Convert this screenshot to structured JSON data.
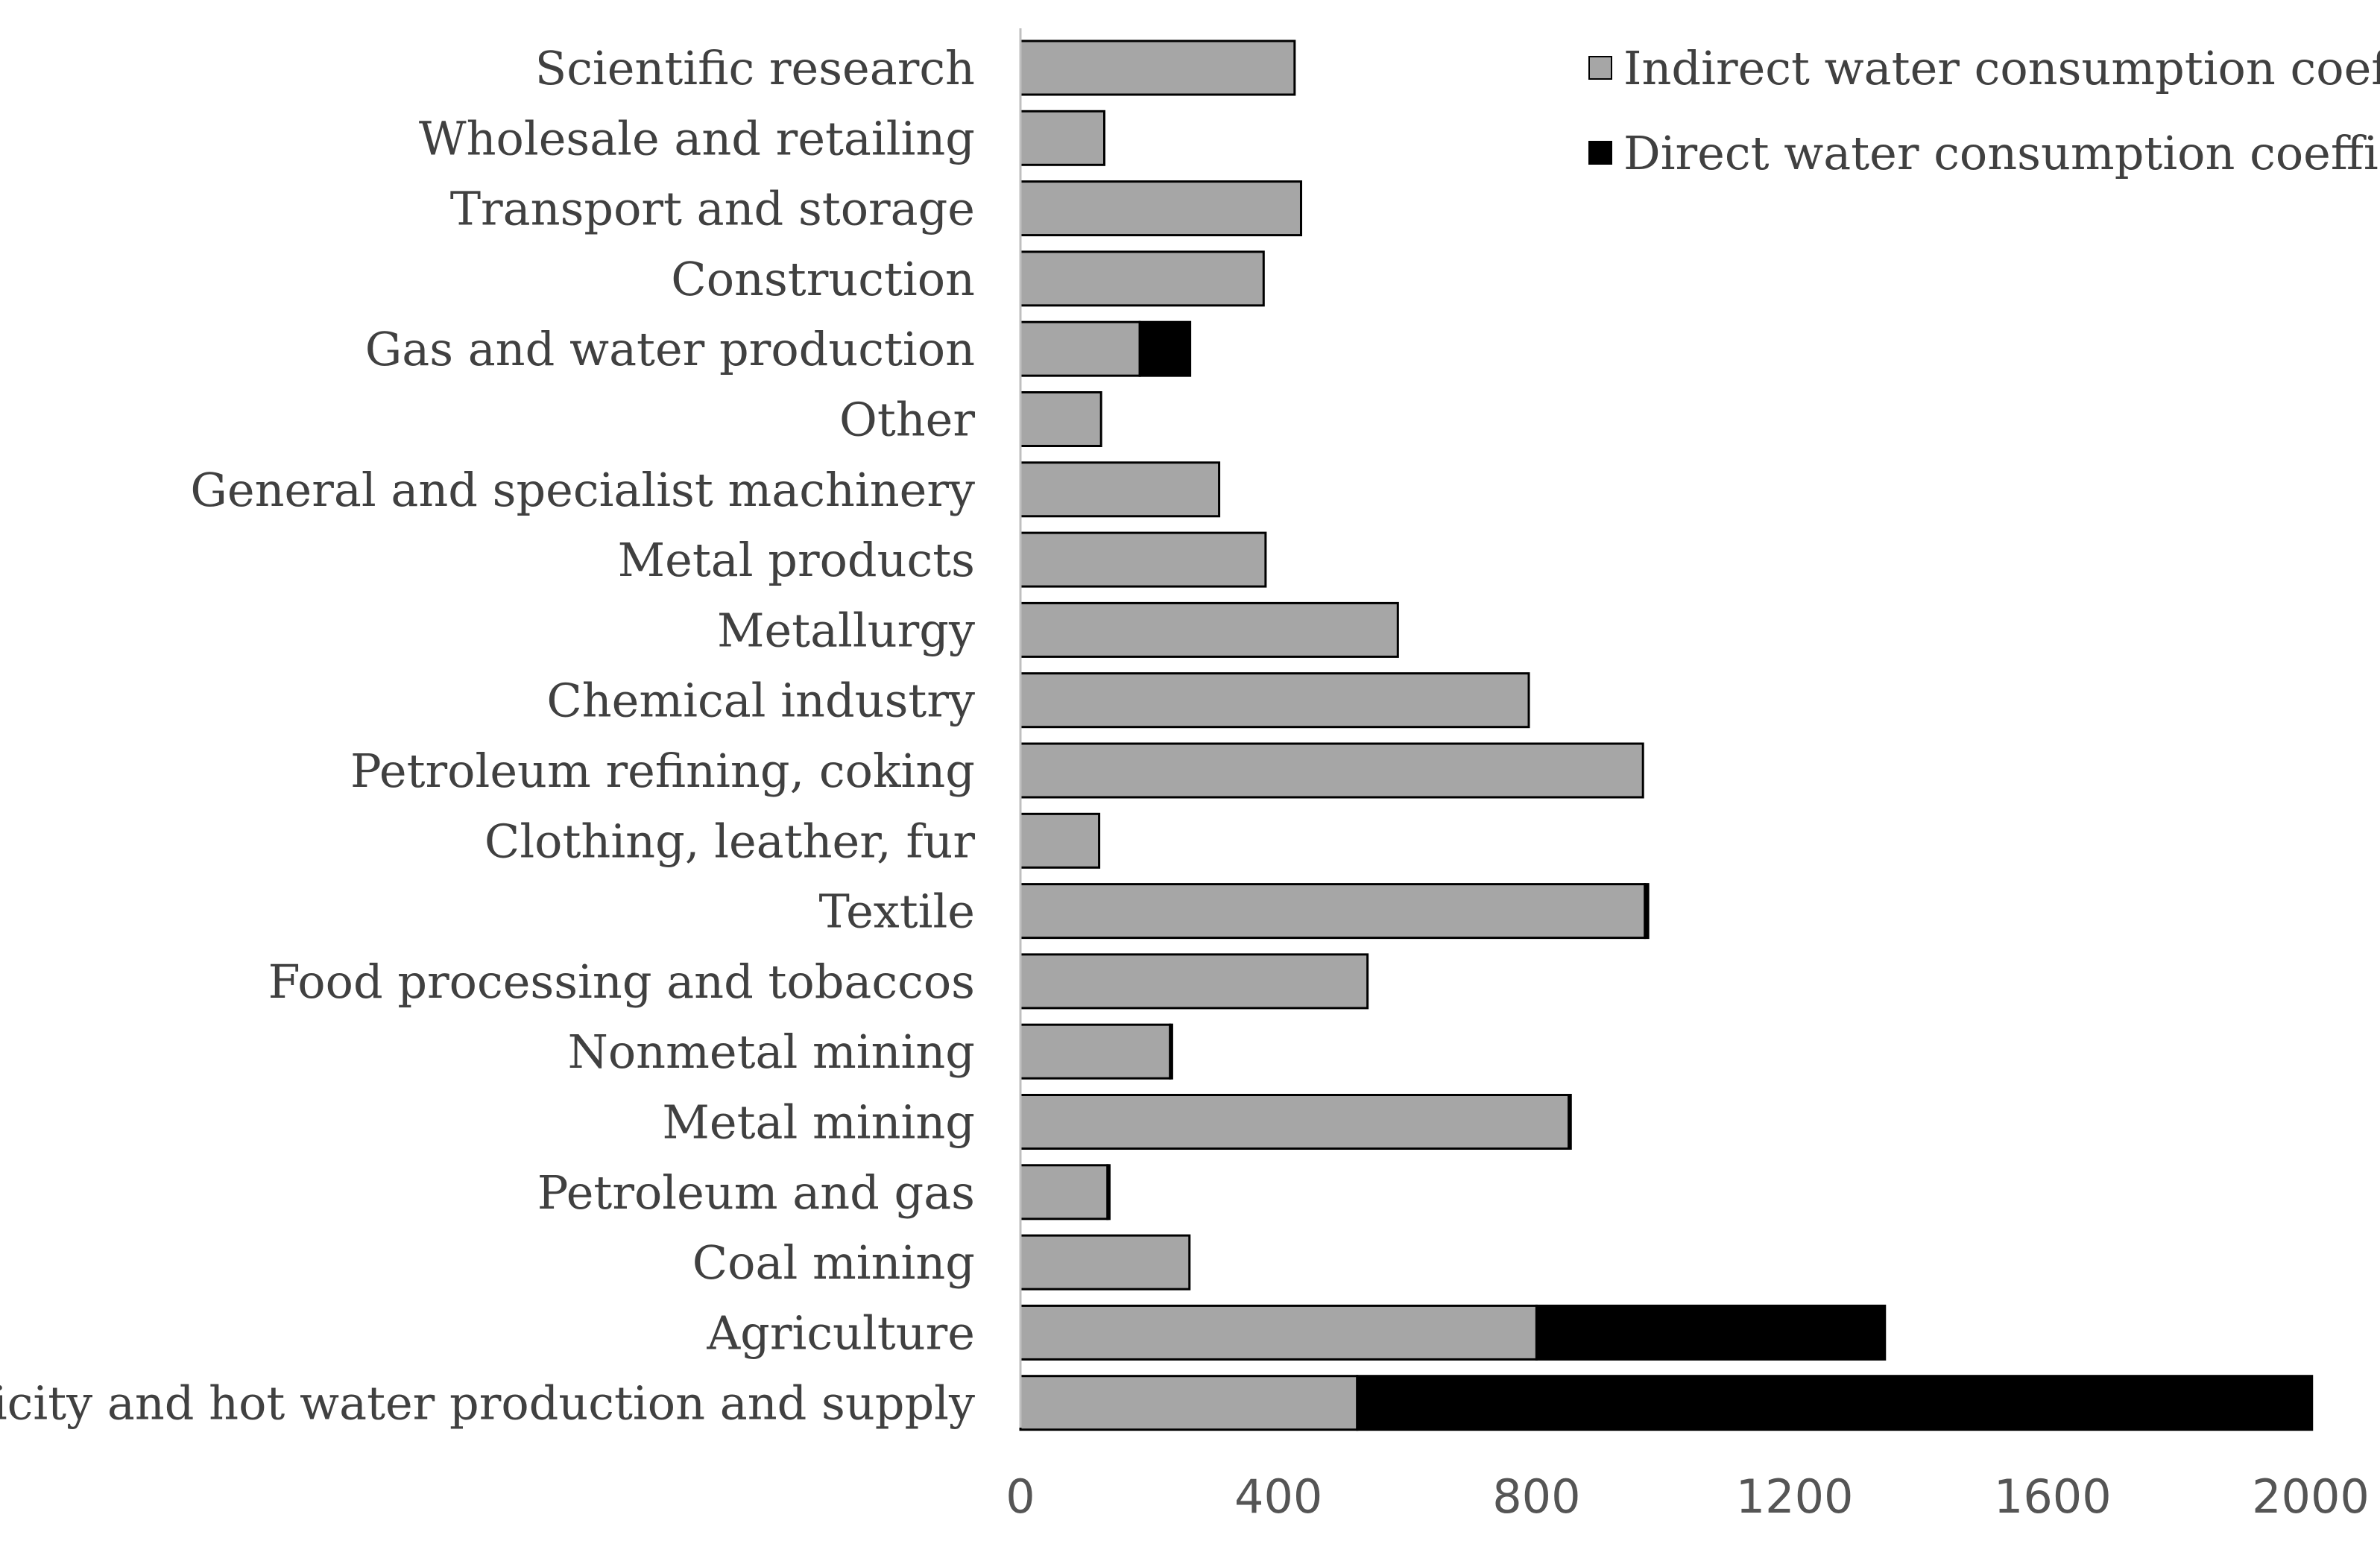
{
  "chart_data": {
    "type": "bar",
    "orientation": "horizontal",
    "stacked": true,
    "title": "",
    "xlabel": "",
    "ylabel": "",
    "xlim": [
      0,
      2000
    ],
    "xticks": [
      0,
      400,
      800,
      1200,
      1600,
      2000
    ],
    "categories": [
      "Scientific research",
      "Wholesale and retailing",
      "Transport and storage",
      "Construction",
      "Gas and water production",
      "Other",
      "General and specialist machinery",
      "Metal products",
      "Metallurgy",
      "Chemical industry",
      "Petroleum refining, coking",
      "Clothing, leather, fur",
      "Textile",
      "Food processing and tobaccos",
      "Nonmetal mining",
      "Metal mining",
      "Petroleum and gas",
      "Coal mining",
      "Agriculture",
      "electricity and hot water production and supply"
    ],
    "series": [
      {
        "name": "Indirect water consumption coefficien",
        "color": "#a6a6a6",
        "values": [
          425,
          130,
          435,
          377,
          185,
          125,
          308,
          380,
          585,
          788,
          965,
          122,
          968,
          538,
          232,
          850,
          135,
          262,
          800,
          522
        ]
      },
      {
        "name": "Direct water consumption coefficient",
        "color": "#000000",
        "values": [
          0,
          0,
          0,
          0,
          78,
          0,
          0,
          0,
          0,
          0,
          0,
          0,
          5,
          0,
          3,
          3,
          3,
          0,
          540,
          1480
        ]
      }
    ],
    "legend_position": "top-right",
    "grid": false
  }
}
